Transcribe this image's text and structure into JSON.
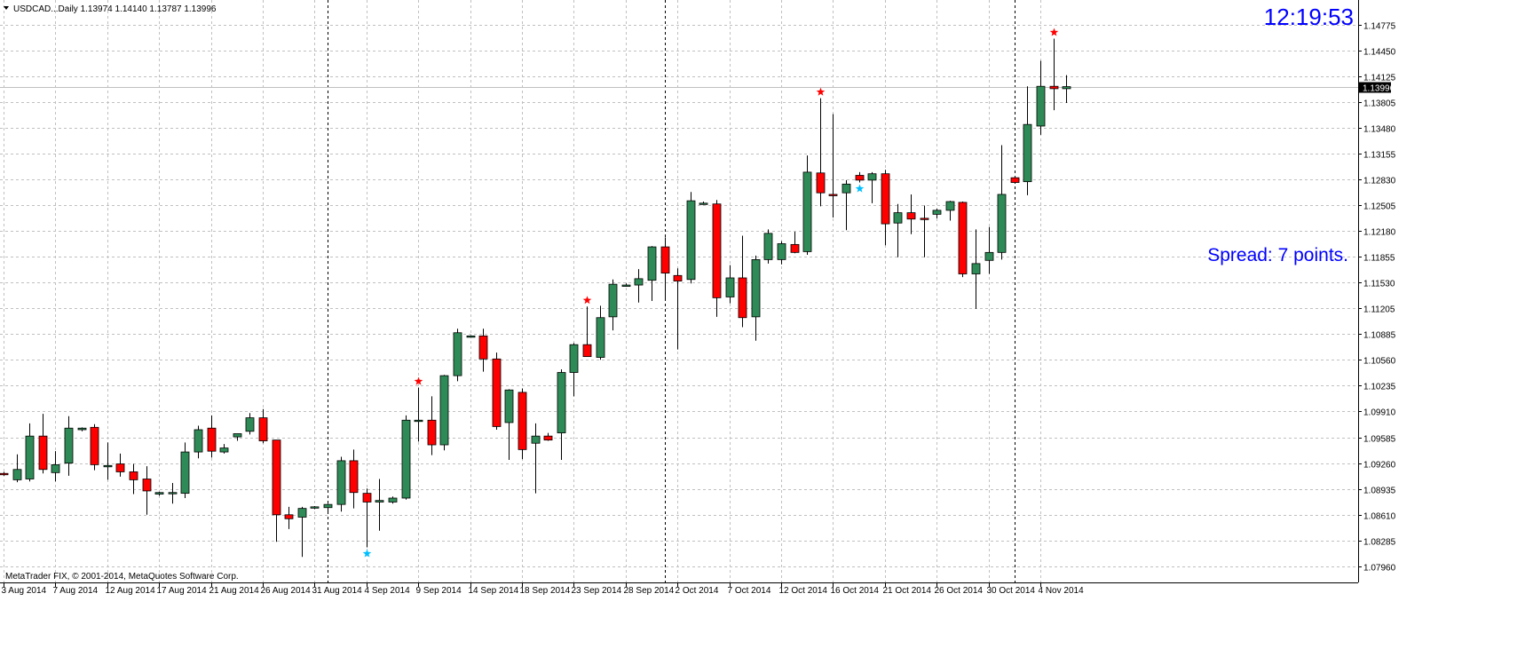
{
  "header": {
    "symbol_info": "USDCAD...Daily  1.13974 1.14140 1.13787 1.13996",
    "menu_icon": "triangle-down-icon"
  },
  "clock": "12:19:53",
  "spread_text": "Spread: 7 points.",
  "copyright": "MetaTrader FIX, © 2001-2014, MetaQuotes Software Corp.",
  "colors": {
    "bull": "#2e8b57",
    "bear": "#ff0000",
    "star_high": "#ff0000",
    "star_low": "#00bfff",
    "text_blue": "#0000ff",
    "price_marker_bg": "#000000",
    "price_marker_fg": "#ffffff"
  },
  "chart_data": {
    "type": "candlestick",
    "symbol": "USDCAD",
    "timeframe": "Daily",
    "ylim": [
      1.0796,
      1.1484
    ],
    "y_ticks": [
      "1.14775",
      "1.14450",
      "1.14125",
      "1.13805",
      "1.13480",
      "1.13155",
      "1.12830",
      "1.12505",
      "1.12180",
      "1.11855",
      "1.11530",
      "1.11205",
      "1.10885",
      "1.10560",
      "1.10235",
      "1.09910",
      "1.09585",
      "1.09260",
      "1.08935",
      "1.08610",
      "1.08285",
      "1.07960"
    ],
    "current_price": "1.13996",
    "x_labels": [
      {
        "i": 0,
        "text": "3 Aug 2014"
      },
      {
        "i": 4,
        "text": "7 Aug 2014"
      },
      {
        "i": 8,
        "text": "12 Aug 2014"
      },
      {
        "i": 12,
        "text": "17 Aug 2014"
      },
      {
        "i": 16,
        "text": "21 Aug 2014"
      },
      {
        "i": 20,
        "text": "26 Aug 2014"
      },
      {
        "i": 24,
        "text": "31 Aug 2014"
      },
      {
        "i": 28,
        "text": "4 Sep 2014"
      },
      {
        "i": 32,
        "text": "9 Sep 2014"
      },
      {
        "i": 36,
        "text": "14 Sep 2014"
      },
      {
        "i": 40,
        "text": "18 Sep 2014"
      },
      {
        "i": 44,
        "text": "23 Sep 2014"
      },
      {
        "i": 48,
        "text": "28 Sep 2014"
      },
      {
        "i": 52,
        "text": "2 Oct 2014"
      },
      {
        "i": 56,
        "text": "7 Oct 2014"
      },
      {
        "i": 60,
        "text": "12 Oct 2014"
      },
      {
        "i": 64,
        "text": "16 Oct 2014"
      },
      {
        "i": 68,
        "text": "21 Oct 2014"
      },
      {
        "i": 72,
        "text": "26 Oct 2014"
      },
      {
        "i": 76,
        "text": "30 Oct 2014"
      },
      {
        "i": 80,
        "text": "4 Nov 2014"
      }
    ],
    "period_separators": [
      25,
      51,
      78
    ],
    "candles": [
      {
        "o": 1.0913,
        "h": 1.0915,
        "l": 1.091,
        "c": 1.0912
      },
      {
        "o": 1.0905,
        "h": 1.0937,
        "l": 1.0902,
        "c": 1.0918
      },
      {
        "o": 1.0906,
        "h": 1.0976,
        "l": 1.0903,
        "c": 1.096
      },
      {
        "o": 1.096,
        "h": 1.0988,
        "l": 1.0913,
        "c": 1.0918
      },
      {
        "o": 1.0914,
        "h": 1.0941,
        "l": 1.0903,
        "c": 1.0924
      },
      {
        "o": 1.0926,
        "h": 1.0985,
        "l": 1.091,
        "c": 1.097
      },
      {
        "o": 1.0968,
        "h": 1.0971,
        "l": 1.0966,
        "c": 1.097
      },
      {
        "o": 1.0971,
        "h": 1.0975,
        "l": 1.0917,
        "c": 1.0924
      },
      {
        "o": 1.0923,
        "h": 1.0952,
        "l": 1.0905,
        "c": 1.0923
      },
      {
        "o": 1.0925,
        "h": 1.0938,
        "l": 1.0909,
        "c": 1.0915
      },
      {
        "o": 1.0915,
        "h": 1.0925,
        "l": 1.0887,
        "c": 1.0905
      },
      {
        "o": 1.0906,
        "h": 1.0922,
        "l": 1.0861,
        "c": 1.0891
      },
      {
        "o": 1.0887,
        "h": 1.089,
        "l": 1.0885,
        "c": 1.0889
      },
      {
        "o": 1.0888,
        "h": 1.0901,
        "l": 1.0875,
        "c": 1.0889
      },
      {
        "o": 1.0888,
        "h": 1.0952,
        "l": 1.0882,
        "c": 1.094
      },
      {
        "o": 1.094,
        "h": 1.0973,
        "l": 1.0932,
        "c": 1.0968
      },
      {
        "o": 1.097,
        "h": 1.0986,
        "l": 1.0933,
        "c": 1.0941
      },
      {
        "o": 1.094,
        "h": 1.095,
        "l": 1.0938,
        "c": 1.0945
      },
      {
        "o": 1.0959,
        "h": 1.0963,
        "l": 1.0954,
        "c": 1.0963
      },
      {
        "o": 1.0966,
        "h": 1.0989,
        "l": 1.0962,
        "c": 1.0983
      },
      {
        "o": 1.0983,
        "h": 1.0994,
        "l": 1.0951,
        "c": 1.0954
      },
      {
        "o": 1.0955,
        "h": 1.0955,
        "l": 1.0827,
        "c": 1.0861
      },
      {
        "o": 1.0861,
        "h": 1.0871,
        "l": 1.0843,
        "c": 1.0856
      },
      {
        "o": 1.0858,
        "h": 1.0871,
        "l": 1.0808,
        "c": 1.0869
      },
      {
        "o": 1.087,
        "h": 1.0872,
        "l": 1.0868,
        "c": 1.0871
      },
      {
        "o": 1.087,
        "h": 1.0875,
        "l": 1.0862,
        "c": 1.0874
      },
      {
        "o": 1.0874,
        "h": 1.0934,
        "l": 1.0865,
        "c": 1.0929
      },
      {
        "o": 1.0929,
        "h": 1.0943,
        "l": 1.0869,
        "c": 1.0889
      },
      {
        "o": 1.0888,
        "h": 1.0894,
        "l": 1.082,
        "c": 1.0877
      },
      {
        "o": 1.0877,
        "h": 1.0906,
        "l": 1.0841,
        "c": 1.0879
      },
      {
        "o": 1.0877,
        "h": 1.0884,
        "l": 1.0875,
        "c": 1.0882
      },
      {
        "o": 1.0882,
        "h": 1.0986,
        "l": 1.088,
        "c": 1.098
      },
      {
        "o": 1.098,
        "h": 1.1021,
        "l": 1.0953,
        "c": 1.098
      },
      {
        "o": 1.098,
        "h": 1.101,
        "l": 1.0936,
        "c": 1.0949
      },
      {
        "o": 1.0949,
        "h": 1.1037,
        "l": 1.0942,
        "c": 1.1036
      },
      {
        "o": 1.1036,
        "h": 1.1095,
        "l": 1.1029,
        "c": 1.109
      },
      {
        "o": 1.1086,
        "h": 1.1087,
        "l": 1.1084,
        "c": 1.1086
      },
      {
        "o": 1.1086,
        "h": 1.1095,
        "l": 1.1041,
        "c": 1.1057
      },
      {
        "o": 1.1057,
        "h": 1.1065,
        "l": 1.0968,
        "c": 1.0972
      },
      {
        "o": 1.0977,
        "h": 1.1019,
        "l": 1.093,
        "c": 1.1018
      },
      {
        "o": 1.1015,
        "h": 1.102,
        "l": 1.0931,
        "c": 1.0943
      },
      {
        "o": 1.0951,
        "h": 1.0976,
        "l": 1.0888,
        "c": 1.096
      },
      {
        "o": 1.096,
        "h": 1.0964,
        "l": 1.0954,
        "c": 1.0955
      },
      {
        "o": 1.0964,
        "h": 1.1044,
        "l": 1.093,
        "c": 1.104
      },
      {
        "o": 1.104,
        "h": 1.1077,
        "l": 1.101,
        "c": 1.1075
      },
      {
        "o": 1.1075,
        "h": 1.1123,
        "l": 1.106,
        "c": 1.106
      },
      {
        "o": 1.1059,
        "h": 1.1124,
        "l": 1.1056,
        "c": 1.1109
      },
      {
        "o": 1.111,
        "h": 1.1157,
        "l": 1.1093,
        "c": 1.1151
      },
      {
        "o": 1.115,
        "h": 1.1152,
        "l": 1.1148,
        "c": 1.115
      },
      {
        "o": 1.115,
        "h": 1.117,
        "l": 1.1128,
        "c": 1.1158
      },
      {
        "o": 1.1156,
        "h": 1.1199,
        "l": 1.113,
        "c": 1.1198
      },
      {
        "o": 1.1198,
        "h": 1.121,
        "l": 1.1131,
        "c": 1.1165
      },
      {
        "o": 1.1162,
        "h": 1.1171,
        "l": 1.1069,
        "c": 1.1155
      },
      {
        "o": 1.1157,
        "h": 1.1267,
        "l": 1.1152,
        "c": 1.1256
      },
      {
        "o": 1.1253,
        "h": 1.1255,
        "l": 1.1251,
        "c": 1.1253
      },
      {
        "o": 1.1252,
        "h": 1.1257,
        "l": 1.111,
        "c": 1.1134
      },
      {
        "o": 1.1135,
        "h": 1.1175,
        "l": 1.1127,
        "c": 1.1159
      },
      {
        "o": 1.1159,
        "h": 1.1212,
        "l": 1.1097,
        "c": 1.1109
      },
      {
        "o": 1.111,
        "h": 1.1187,
        "l": 1.108,
        "c": 1.1182
      },
      {
        "o": 1.1182,
        "h": 1.122,
        "l": 1.1177,
        "c": 1.1215
      },
      {
        "o": 1.1182,
        "h": 1.1205,
        "l": 1.1176,
        "c": 1.1202
      },
      {
        "o": 1.1201,
        "h": 1.1217,
        "l": 1.119,
        "c": 1.1191
      },
      {
        "o": 1.1192,
        "h": 1.1313,
        "l": 1.1188,
        "c": 1.1292
      },
      {
        "o": 1.1291,
        "h": 1.1385,
        "l": 1.1249,
        "c": 1.1266
      },
      {
        "o": 1.1264,
        "h": 1.1365,
        "l": 1.1235,
        "c": 1.1263
      },
      {
        "o": 1.1266,
        "h": 1.1282,
        "l": 1.1219,
        "c": 1.1277
      },
      {
        "o": 1.1288,
        "h": 1.1292,
        "l": 1.1279,
        "c": 1.1282
      },
      {
        "o": 1.1282,
        "h": 1.1292,
        "l": 1.1253,
        "c": 1.129
      },
      {
        "o": 1.129,
        "h": 1.1295,
        "l": 1.12,
        "c": 1.1227
      },
      {
        "o": 1.1228,
        "h": 1.1252,
        "l": 1.1185,
        "c": 1.1241
      },
      {
        "o": 1.1241,
        "h": 1.1264,
        "l": 1.1214,
        "c": 1.1233
      },
      {
        "o": 1.1234,
        "h": 1.125,
        "l": 1.1185,
        "c": 1.1233
      },
      {
        "o": 1.1239,
        "h": 1.1246,
        "l": 1.1234,
        "c": 1.1244
      },
      {
        "o": 1.1244,
        "h": 1.1256,
        "l": 1.1231,
        "c": 1.1255
      },
      {
        "o": 1.1254,
        "h": 1.1255,
        "l": 1.116,
        "c": 1.1164
      },
      {
        "o": 1.1164,
        "h": 1.122,
        "l": 1.112,
        "c": 1.1177
      },
      {
        "o": 1.1181,
        "h": 1.1223,
        "l": 1.1164,
        "c": 1.1191
      },
      {
        "o": 1.1191,
        "h": 1.1326,
        "l": 1.1182,
        "c": 1.1264
      },
      {
        "o": 1.1285,
        "h": 1.1287,
        "l": 1.1278,
        "c": 1.1279
      },
      {
        "o": 1.128,
        "h": 1.14,
        "l": 1.1263,
        "c": 1.1352
      },
      {
        "o": 1.135,
        "h": 1.1432,
        "l": 1.1339,
        "c": 1.14
      },
      {
        "o": 1.14,
        "h": 1.146,
        "l": 1.137,
        "c": 1.1397
      },
      {
        "o": 1.1397,
        "h": 1.1414,
        "l": 1.1379,
        "c": 1.13996
      }
    ],
    "fractals_high": [
      32,
      45,
      63,
      81
    ],
    "fractals_low": [
      28,
      66
    ]
  }
}
